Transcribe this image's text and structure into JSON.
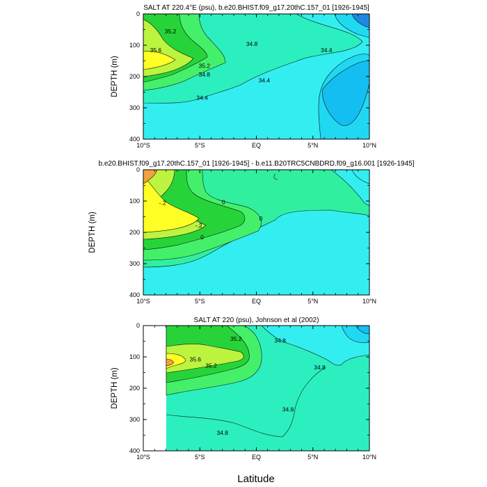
{
  "colors": {
    "cyan_light": "#33EEF0",
    "cyan_mid": "#20D8F2",
    "cyan_deep": "#14BEF0",
    "blue_core": "#1E88E0",
    "teal": "#2CEFC0",
    "aqua_green": "#30F0A0",
    "light_green": "#44F06A",
    "green": "#26D43A",
    "lime": "#BCF440",
    "yellow": "#FFFF26",
    "orange": "#F5A040",
    "contour": "#111111"
  },
  "xlabel": "Latitude",
  "chart_data": [
    {
      "type": "contour",
      "title": "SALT AT 220.4°E (psu), b.e20.BHIST.f09_g17.20thC.157_01 [1926-1945]",
      "ylabel": "DEPTH (m)",
      "xlim": [
        -10,
        10
      ],
      "ylim": [
        400,
        0
      ],
      "xticks": [
        "10°S",
        "5°S",
        "EQ",
        "5°N",
        "10°N"
      ],
      "yticks": [
        "0",
        "100",
        "200",
        "300",
        "400"
      ],
      "contour_labels": [
        {
          "text": "35.2",
          "lat": -7.6,
          "depth": 55
        },
        {
          "text": "35.6",
          "lat": -8.9,
          "depth": 115
        },
        {
          "text": "35.2",
          "lat": -4.6,
          "depth": 165
        },
        {
          "text": "34.8",
          "lat": -4.6,
          "depth": 193
        },
        {
          "text": "34.8",
          "lat": -0.4,
          "depth": 95
        },
        {
          "text": "34.4",
          "lat": 6.2,
          "depth": 115
        },
        {
          "text": "34.4",
          "lat": 0.7,
          "depth": 212
        },
        {
          "text": "34.4",
          "lat": -4.8,
          "depth": 268
        }
      ]
    },
    {
      "type": "contour",
      "title": "b.e20.BHIST.f09_g17.20thC.157_01 [1926-1945] - b.e11.B20TRC5CNBDRD.f09_g16.001 [1926-1945]",
      "ylabel": "DEPTH (m)",
      "xlim": [
        -10,
        10
      ],
      "ylim": [
        400,
        0
      ],
      "xticks": [
        "10°S",
        "5°S",
        "EQ",
        "5°N",
        "10°N"
      ],
      "yticks": [
        "0",
        "100",
        "200",
        "300",
        "400"
      ],
      "contour_labels": [
        {
          "text": "-.2",
          "lat": -8.3,
          "depth": 105
        },
        {
          "text": "0",
          "lat": -2.9,
          "depth": 103
        },
        {
          "text": "-.2",
          "lat": -5.1,
          "depth": 178
        },
        {
          "text": "0",
          "lat": 0.4,
          "depth": 155
        },
        {
          "text": "0",
          "lat": -4.8,
          "depth": 215
        }
      ]
    },
    {
      "type": "contour",
      "title": "SALT AT 220 (psu), Johnson et al (2002)",
      "ylabel": "DEPTH (m)",
      "xlim": [
        -10,
        10
      ],
      "ylim": [
        400,
        0
      ],
      "xticks": [
        "10°S",
        "5°S",
        "EQ",
        "5°N",
        "10°N"
      ],
      "yticks": [
        "0",
        "100",
        "200",
        "300",
        "400"
      ],
      "data_start_lat": -8,
      "contour_labels": [
        {
          "text": "35.2",
          "lat": -1.8,
          "depth": 42
        },
        {
          "text": "35.6",
          "lat": -5.4,
          "depth": 108
        },
        {
          "text": "35.2",
          "lat": -4.0,
          "depth": 128
        },
        {
          "text": "34.8",
          "lat": 2.1,
          "depth": 48
        },
        {
          "text": "34.8",
          "lat": 5.6,
          "depth": 133
        },
        {
          "text": "34.8",
          "lat": 2.8,
          "depth": 268
        },
        {
          "text": "34.8",
          "lat": -3.0,
          "depth": 342
        }
      ]
    }
  ]
}
